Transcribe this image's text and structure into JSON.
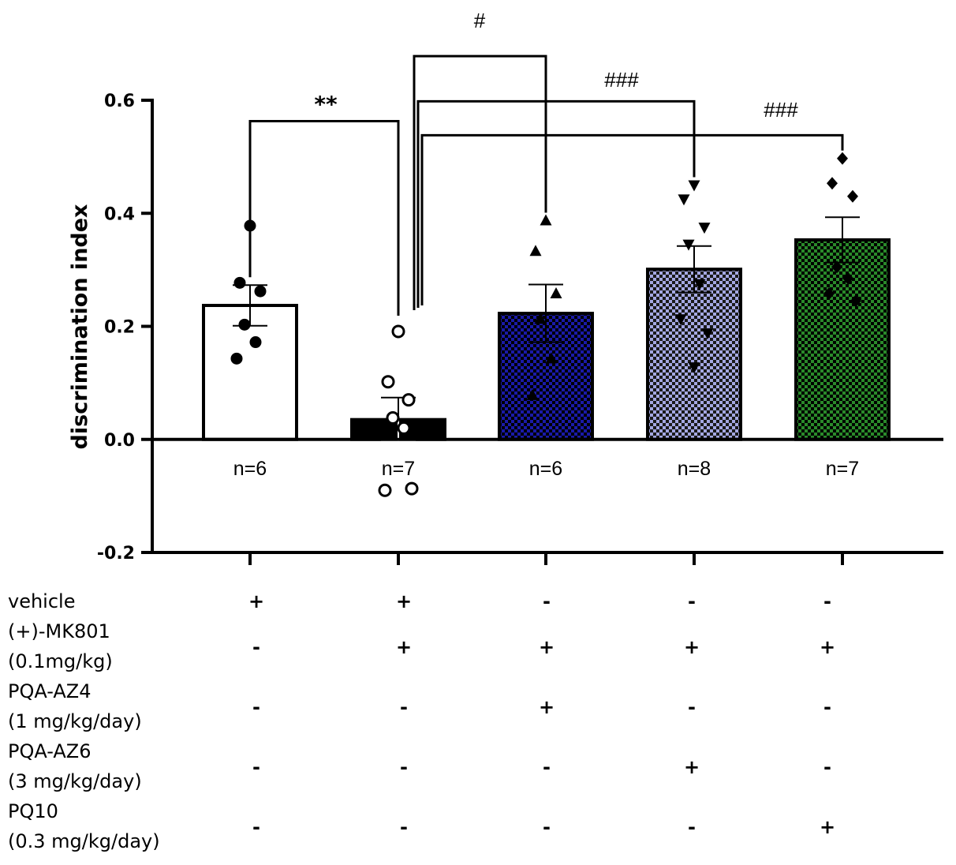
{
  "chart_data": {
    "type": "bar",
    "title": "",
    "xlabel": "",
    "ylabel": "discrimination index",
    "ylim": [
      -0.2,
      0.6
    ],
    "yticks": [
      -0.2,
      0.0,
      0.2,
      0.4,
      0.6
    ],
    "ytick_labels": [
      "-0.2",
      "0.0",
      "0.2",
      "0.4",
      "0.6"
    ],
    "categories": [
      "vehicle",
      "MK801",
      "MK801 + PQA-AZ4",
      "MK801 + PQA-AZ6",
      "MK801 + PQ10"
    ],
    "n_labels": [
      "n=6",
      "n=7",
      "n=6",
      "n=8",
      "n=7"
    ],
    "groups": [
      {
        "mean": 0.237,
        "sem": 0.036,
        "fill": "#ffffff",
        "checker": "",
        "marker": "circle-filled",
        "points": [
          0.378,
          0.277,
          0.262,
          0.203,
          0.172,
          0.143
        ]
      },
      {
        "mean": 0.035,
        "sem": 0.039,
        "fill": "#000000",
        "checker": "",
        "marker": "circle-open",
        "points": [
          0.191,
          0.102,
          0.07,
          0.038,
          0.02,
          -0.09,
          -0.087
        ]
      },
      {
        "mean": 0.223,
        "sem": 0.051,
        "fill": "#1a1aa8",
        "checker": "#000000",
        "marker": "triangle-up",
        "points": [
          0.387,
          0.333,
          0.258,
          0.213,
          0.143,
          0.078
        ]
      },
      {
        "mean": 0.301,
        "sem": 0.041,
        "fill": "#a4a8e2",
        "checker": "#1a1a1a",
        "marker": "triangle-down",
        "points": [
          0.45,
          0.425,
          0.375,
          0.345,
          0.275,
          0.213,
          0.188,
          0.128
        ]
      },
      {
        "mean": 0.353,
        "sem": 0.04,
        "fill": "#2a8a2a",
        "checker": "#000000",
        "marker": "diamond",
        "points": [
          0.497,
          0.453,
          0.43,
          0.305,
          0.285,
          0.258,
          0.245
        ]
      }
    ],
    "significance": [
      {
        "label": "**",
        "from": 0,
        "to": 1,
        "y": 0.563
      },
      {
        "label": "#",
        "from": 1,
        "to": 2,
        "y": 0.678
      },
      {
        "label": "###",
        "from": 1,
        "to": 3,
        "y": 0.598
      },
      {
        "label": "###",
        "from": 1,
        "to": 4,
        "y": 0.538
      }
    ]
  },
  "treatment_table": {
    "rows": [
      {
        "label_lines": [
          "vehicle"
        ],
        "signs": [
          "+",
          "+",
          "-",
          "-",
          "-"
        ]
      },
      {
        "label_lines": [
          "(+)-MK801",
          "(0.1mg/kg)"
        ],
        "signs": [
          "-",
          "+",
          "+",
          "+",
          "+"
        ]
      },
      {
        "label_lines": [
          "PQA-AZ4",
          "(1 mg/kg/day)"
        ],
        "signs": [
          "-",
          "-",
          "+",
          "-",
          "-"
        ]
      },
      {
        "label_lines": [
          "PQA-AZ6",
          "(3 mg/kg/day)"
        ],
        "signs": [
          "-",
          "-",
          "-",
          "+",
          "-"
        ]
      },
      {
        "label_lines": [
          "PQ10",
          "(0.3 mg/kg/day)"
        ],
        "signs": [
          "-",
          "-",
          "-",
          "-",
          "+"
        ]
      }
    ]
  }
}
